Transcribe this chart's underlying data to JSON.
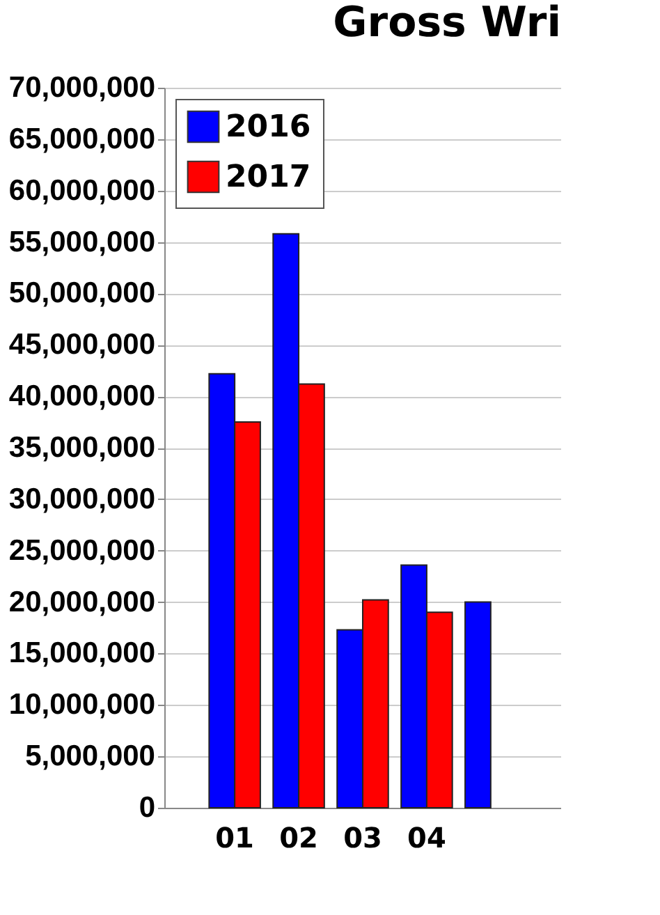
{
  "chart_data": {
    "type": "bar",
    "title": "Gross Wri",
    "categories": [
      "01",
      "02",
      "03",
      "04",
      null
    ],
    "series": [
      {
        "name": "2016",
        "color": "#0000ff",
        "values": [
          42200000,
          55800000,
          17300000,
          23600000,
          20000000
        ]
      },
      {
        "name": "2017",
        "color": "#ff0000",
        "values": [
          37500000,
          41200000,
          20200000,
          19000000,
          null
        ]
      }
    ],
    "ylim": [
      0,
      70000000
    ],
    "yticks": [
      0,
      {
        "value": 5000000,
        "label": "5,000,000"
      },
      {
        "value": 10000000,
        "label": "10,000,000"
      },
      {
        "value": 15000000,
        "label": "15,000,000"
      },
      {
        "value": 20000000,
        "label": "20,000,000"
      },
      {
        "value": 25000000,
        "label": "25,000,000"
      },
      {
        "value": 30000000,
        "label": "30,000,000"
      },
      {
        "value": 35000000,
        "label": "35,000,000"
      },
      {
        "value": 40000000,
        "label": "40,000,000"
      },
      {
        "value": 45000000,
        "label": "45,000,000"
      },
      {
        "value": 50000000,
        "label": "50,000,000"
      },
      {
        "value": 55000000,
        "label": "55,000,000"
      },
      {
        "value": 60000000,
        "label": "60,000,000"
      },
      {
        "value": 65000000,
        "label": "65,000,000"
      },
      {
        "value": 70000000,
        "label": "70,000,000"
      }
    ],
    "grid": "y",
    "legend": "top left"
  }
}
